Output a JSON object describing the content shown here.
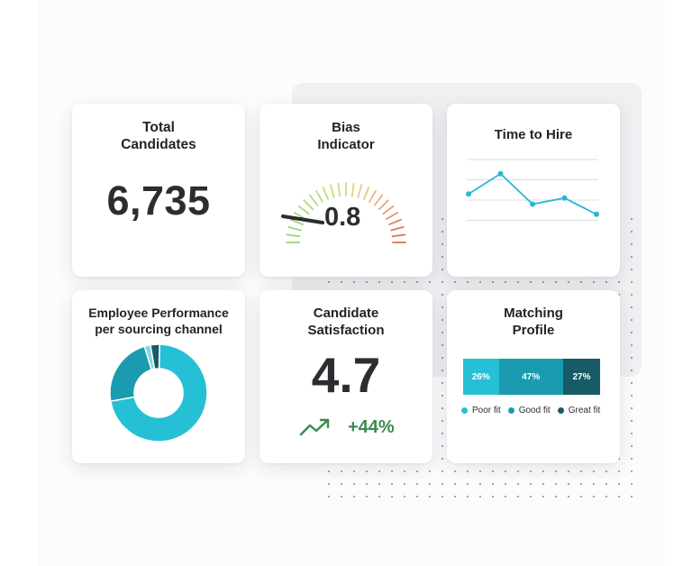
{
  "colors": {
    "teal_light": "#25c0d6",
    "teal_mid": "#1a9bb0",
    "teal_dark": "#175b66",
    "line": "#2ab7d1",
    "trend_green": "#3b8a4d"
  },
  "cards": {
    "total": {
      "title": "Total\nCandidates",
      "value": "6,735"
    },
    "bias": {
      "title": "Bias\nIndicator",
      "value": "0.8",
      "level": 0.8
    },
    "time": {
      "title": "Time to Hire"
    },
    "performance": {
      "title": "Employee Performance\nper sourcing channel"
    },
    "satisfaction": {
      "title": "Candidate\nSatisfaction",
      "value": "4.7",
      "change": "+44%",
      "trend_icon": "trending-up-icon"
    },
    "matching": {
      "title": "Matching\nProfile"
    }
  },
  "chart_data": [
    {
      "type": "line",
      "title": "Time to Hire",
      "x": [
        1,
        2,
        3,
        4,
        5
      ],
      "series": [
        {
          "values": [
            2.3,
            3.3,
            1.8,
            2.1,
            1.3
          ]
        }
      ],
      "ylim": [
        0,
        4
      ],
      "grid": true
    },
    {
      "type": "pie",
      "title": "Employee Performance per sourcing channel",
      "values": [
        72,
        23,
        2,
        3
      ],
      "colors": [
        "#25c0d6",
        "#1a9bb0",
        "#7fd6e3",
        "#175b66"
      ],
      "donut": true
    },
    {
      "type": "bar",
      "title": "Matching Profile",
      "stacked": true,
      "categories": [
        "Poor fit",
        "Good fit",
        "Great fit"
      ],
      "values": [
        26,
        47,
        27
      ],
      "labels": [
        "26%",
        "47%",
        "27%"
      ],
      "colors": [
        "#25c0d6",
        "#1a9bb0",
        "#175b66"
      ],
      "legend": "bottom"
    }
  ]
}
